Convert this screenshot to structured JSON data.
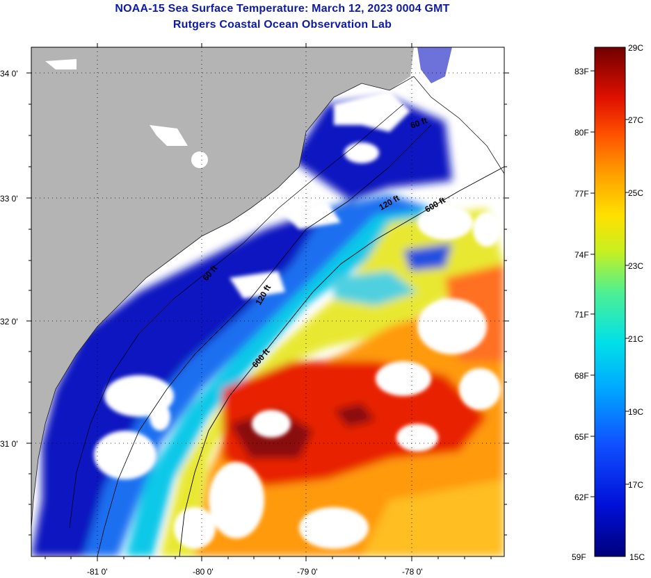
{
  "header": {
    "title": "NOAA-15 Sea Surface Temperature:  March 12, 2023 0004 GMT",
    "subtitle": "Rutgers Coastal Ocean Observation Lab"
  },
  "map": {
    "lat_labels": [
      "34 0'",
      "33 0'",
      "32 0'",
      "31 0'"
    ],
    "lon_labels": [
      "-81 0'",
      "-80 0'",
      "-79 0'",
      "-78 0'"
    ],
    "contour_labels": [
      "120 ft",
      "600 ft",
      "120 ft",
      "60 ft",
      "600 ft",
      "60 ft"
    ],
    "colors": {
      "land": "#b4b4b4",
      "cloud": "#ffffff",
      "cold": "#0a14a0",
      "warm": "#d01a00"
    }
  },
  "colorbar": {
    "fahrenheit": [
      "83F",
      "80F",
      "77F",
      "74F",
      "71F",
      "68F",
      "65F",
      "62F",
      "59F"
    ],
    "celsius": [
      "29C",
      "27C",
      "25C",
      "23C",
      "21C",
      "19C",
      "17C",
      "15C"
    ],
    "min_c": 15,
    "max_c": 29
  }
}
